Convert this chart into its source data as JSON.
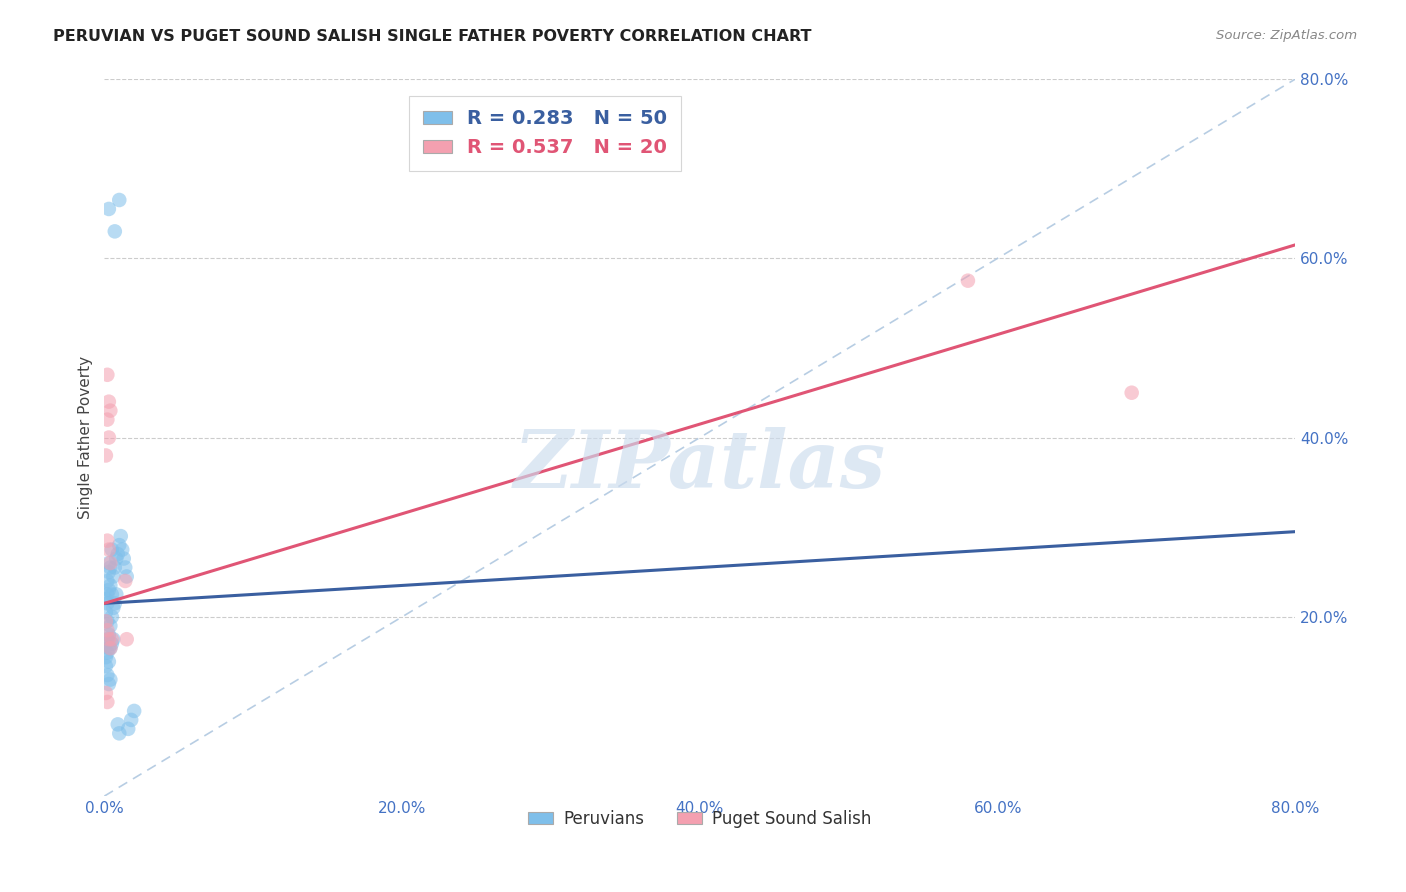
{
  "title": "PERUVIAN VS PUGET SOUND SALISH SINGLE FATHER POVERTY CORRELATION CHART",
  "source": "Source: ZipAtlas.com",
  "ylabel": "Single Father Poverty",
  "xlim": [
    0.0,
    0.8
  ],
  "ylim": [
    0.0,
    0.8
  ],
  "xtick_labels": [
    "0.0%",
    "20.0%",
    "40.0%",
    "60.0%",
    "80.0%"
  ],
  "xtick_values": [
    0.0,
    0.2,
    0.4,
    0.6,
    0.8
  ],
  "ytick_labels": [
    "20.0%",
    "40.0%",
    "60.0%",
    "80.0%"
  ],
  "ytick_values": [
    0.2,
    0.4,
    0.6,
    0.8
  ],
  "blue_color": "#7fbfea",
  "pink_color": "#f4a0b0",
  "blue_line_color": "#3a5fa0",
  "pink_line_color": "#e05575",
  "diagonal_color": "#b0c8e0",
  "watermark": "ZIPatlas",
  "R_blue": 0.283,
  "N_blue": 50,
  "R_pink": 0.537,
  "N_pink": 20,
  "blue_line": [
    0.0,
    0.215,
    0.8,
    0.295
  ],
  "pink_line": [
    0.0,
    0.215,
    0.8,
    0.615
  ],
  "diagonal_line": [
    0.0,
    0.0,
    0.8,
    0.8
  ],
  "blue_points": [
    [
      0.003,
      0.655
    ],
    [
      0.01,
      0.665
    ],
    [
      0.007,
      0.63
    ],
    [
      0.002,
      0.215
    ],
    [
      0.003,
      0.23
    ],
    [
      0.004,
      0.255
    ],
    [
      0.005,
      0.275
    ],
    [
      0.003,
      0.26
    ],
    [
      0.002,
      0.225
    ],
    [
      0.001,
      0.205
    ],
    [
      0.002,
      0.195
    ],
    [
      0.003,
      0.18
    ],
    [
      0.004,
      0.19
    ],
    [
      0.005,
      0.2
    ],
    [
      0.006,
      0.21
    ],
    [
      0.007,
      0.215
    ],
    [
      0.008,
      0.225
    ],
    [
      0.001,
      0.17
    ],
    [
      0.002,
      0.16
    ],
    [
      0.003,
      0.15
    ],
    [
      0.004,
      0.165
    ],
    [
      0.005,
      0.17
    ],
    [
      0.006,
      0.175
    ],
    [
      0.001,
      0.145
    ],
    [
      0.002,
      0.135
    ],
    [
      0.003,
      0.125
    ],
    [
      0.004,
      0.13
    ],
    [
      0.001,
      0.22
    ],
    [
      0.002,
      0.24
    ],
    [
      0.003,
      0.25
    ],
    [
      0.004,
      0.235
    ],
    [
      0.005,
      0.225
    ],
    [
      0.006,
      0.245
    ],
    [
      0.007,
      0.255
    ],
    [
      0.008,
      0.265
    ],
    [
      0.009,
      0.27
    ],
    [
      0.01,
      0.28
    ],
    [
      0.011,
      0.29
    ],
    [
      0.012,
      0.275
    ],
    [
      0.013,
      0.265
    ],
    [
      0.014,
      0.255
    ],
    [
      0.015,
      0.245
    ],
    [
      0.002,
      0.175
    ],
    [
      0.003,
      0.165
    ],
    [
      0.001,
      0.155
    ],
    [
      0.016,
      0.075
    ],
    [
      0.018,
      0.085
    ],
    [
      0.02,
      0.095
    ],
    [
      0.009,
      0.08
    ],
    [
      0.01,
      0.07
    ]
  ],
  "pink_points": [
    [
      0.002,
      0.47
    ],
    [
      0.003,
      0.44
    ],
    [
      0.004,
      0.43
    ],
    [
      0.002,
      0.42
    ],
    [
      0.003,
      0.4
    ],
    [
      0.001,
      0.38
    ],
    [
      0.002,
      0.285
    ],
    [
      0.003,
      0.275
    ],
    [
      0.004,
      0.26
    ],
    [
      0.001,
      0.195
    ],
    [
      0.002,
      0.185
    ],
    [
      0.003,
      0.175
    ],
    [
      0.004,
      0.165
    ],
    [
      0.005,
      0.175
    ],
    [
      0.001,
      0.115
    ],
    [
      0.002,
      0.105
    ],
    [
      0.014,
      0.24
    ],
    [
      0.015,
      0.175
    ],
    [
      0.58,
      0.575
    ],
    [
      0.69,
      0.45
    ]
  ]
}
